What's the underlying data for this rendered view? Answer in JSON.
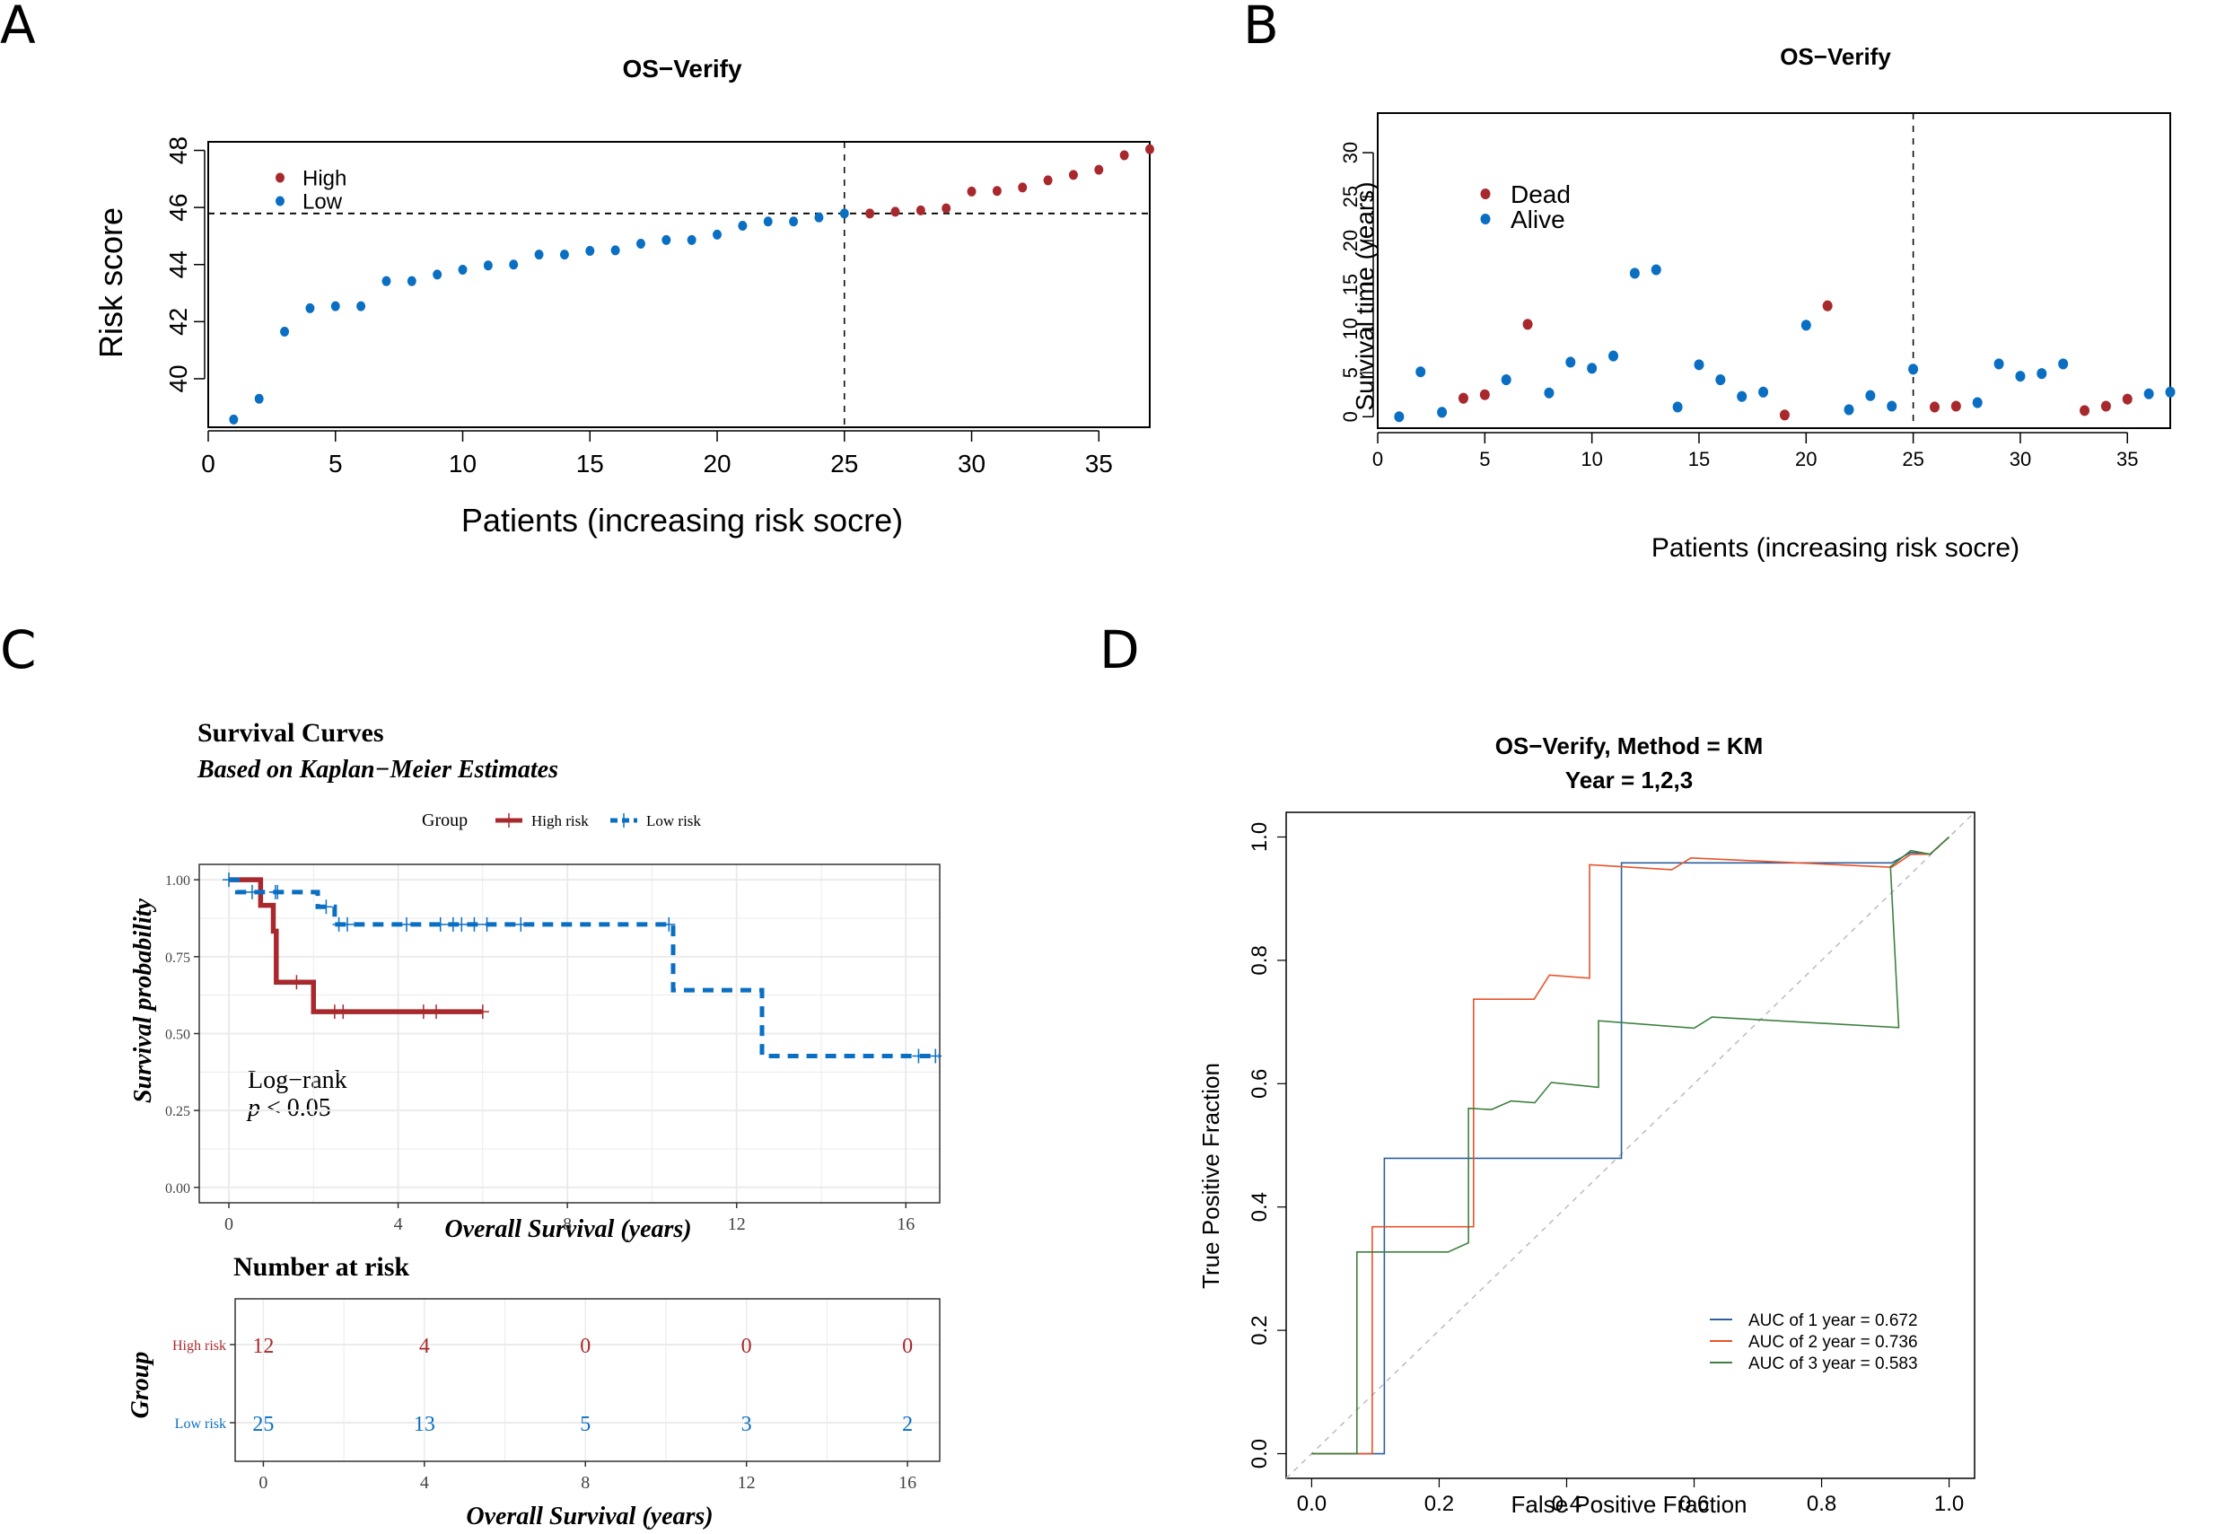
{
  "panels": {
    "A": {
      "letter": "A"
    },
    "B": {
      "letter": "B"
    },
    "C": {
      "letter": "C"
    },
    "D": {
      "letter": "D"
    }
  },
  "colors": {
    "high": "#a8292d",
    "low": "#0a6fc2",
    "roc_1": "#2c5f9e",
    "roc_2": "#e8532a",
    "roc_3": "#3d8040",
    "diag": "#bbbbbb",
    "grid": "#ebebeb"
  },
  "chart_data": [
    {
      "id": "A",
      "type": "scatter",
      "title": "OS−Verify",
      "xlabel": "Patients (increasing risk socre)",
      "ylabel": "Risk score",
      "xlim": [
        0,
        37
      ],
      "ylim": [
        38.3,
        48.3
      ],
      "xticks": [
        0,
        5,
        10,
        15,
        20,
        25,
        30,
        35
      ],
      "yticks": [
        40,
        42,
        44,
        46,
        48
      ],
      "cutoff_x": 25,
      "cutoff_y": 45.79,
      "legend": [
        {
          "label": "High",
          "color_key": "high"
        },
        {
          "label": "Low",
          "color_key": "low"
        }
      ],
      "legend_position": "top-left",
      "x": [
        1,
        2,
        3,
        4,
        5,
        6,
        7,
        8,
        9,
        10,
        11,
        12,
        13,
        14,
        15,
        16,
        17,
        18,
        19,
        20,
        21,
        22,
        23,
        24,
        25,
        26,
        27,
        28,
        29,
        30,
        31,
        32,
        33,
        34,
        35,
        36,
        37
      ],
      "values": [
        38.57,
        39.3,
        41.65,
        42.47,
        42.54,
        42.54,
        43.42,
        43.42,
        43.65,
        43.82,
        43.97,
        44.0,
        44.35,
        44.35,
        44.48,
        44.5,
        44.73,
        44.86,
        44.86,
        45.05,
        45.36,
        45.51,
        45.51,
        45.65,
        45.79,
        45.79,
        45.85,
        45.9,
        45.97,
        46.56,
        46.58,
        46.7,
        46.95,
        47.14,
        47.32,
        47.83,
        48.04
      ],
      "groups": [
        "Low",
        "Low",
        "Low",
        "Low",
        "Low",
        "Low",
        "Low",
        "Low",
        "Low",
        "Low",
        "Low",
        "Low",
        "Low",
        "Low",
        "Low",
        "Low",
        "Low",
        "Low",
        "Low",
        "Low",
        "Low",
        "Low",
        "Low",
        "Low",
        "Low",
        "High",
        "High",
        "High",
        "High",
        "High",
        "High",
        "High",
        "High",
        "High",
        "High",
        "High",
        "High"
      ]
    },
    {
      "id": "B",
      "type": "scatter",
      "title": "OS−Verify",
      "xlabel": "Patients (increasing risk socre)",
      "ylabel": "Survival time (years)",
      "xlim": [
        0,
        37
      ],
      "ylim": [
        -1.3,
        34.5
      ],
      "xticks": [
        0,
        5,
        10,
        15,
        20,
        25,
        30,
        35
      ],
      "yticks": [
        0,
        5,
        10,
        15,
        20,
        25,
        30
      ],
      "cutoff_x": 25,
      "legend": [
        {
          "label": "Dead",
          "color_key": "high"
        },
        {
          "label": "Alive",
          "color_key": "low"
        }
      ],
      "legend_position": "top-left",
      "x": [
        1,
        2,
        3,
        4,
        5,
        6,
        7,
        8,
        9,
        10,
        11,
        12,
        13,
        14,
        15,
        16,
        17,
        18,
        19,
        20,
        21,
        22,
        23,
        24,
        25,
        26,
        27,
        28,
        29,
        30,
        31,
        32,
        33,
        34,
        35,
        36,
        37
      ],
      "values": [
        0.0,
        5.1,
        0.5,
        2.1,
        2.5,
        4.2,
        10.5,
        2.7,
        6.2,
        5.5,
        6.9,
        16.3,
        16.7,
        1.1,
        5.9,
        4.2,
        2.3,
        2.8,
        0.2,
        10.4,
        12.6,
        0.8,
        2.4,
        1.2,
        5.4,
        1.1,
        1.2,
        1.6,
        6.0,
        4.6,
        4.9,
        6.0,
        0.7,
        1.2,
        2.0,
        2.6,
        2.8
      ],
      "status": [
        "Alive",
        "Alive",
        "Alive",
        "Dead",
        "Dead",
        "Alive",
        "Dead",
        "Alive",
        "Alive",
        "Alive",
        "Alive",
        "Alive",
        "Alive",
        "Alive",
        "Alive",
        "Alive",
        "Alive",
        "Alive",
        "Dead",
        "Alive",
        "Dead",
        "Alive",
        "Alive",
        "Alive",
        "Alive",
        "Dead",
        "Dead",
        "Alive",
        "Alive",
        "Alive",
        "Alive",
        "Alive",
        "Dead",
        "Dead",
        "Dead",
        "Alive",
        "Alive"
      ]
    },
    {
      "id": "C",
      "type": "line",
      "title": "Survival Curves",
      "subtitle": "Based on Kaplan−Meier Estimates",
      "xlabel": "Overall Survival (years)",
      "ylabel": "Survival probability",
      "xlim": [
        -0.7,
        16.8
      ],
      "ylim": [
        -0.05,
        1.05
      ],
      "xticks": [
        0,
        4,
        8,
        12,
        16
      ],
      "yticks": [
        0.0,
        0.25,
        0.5,
        0.75,
        1.0
      ],
      "ytick_labels": [
        "0.00",
        "0.25",
        "0.50",
        "0.75",
        "1.00"
      ],
      "legend_title": "Group",
      "legend_position": "top",
      "annotation": [
        "Log−rank",
        "p < 0.05"
      ],
      "series": [
        {
          "name": "High risk",
          "color_key": "high",
          "style": "solid",
          "steps": [
            [
              0,
              1.0
            ],
            [
              0.75,
              1.0
            ],
            [
              0.75,
              0.917
            ],
            [
              1.05,
              0.917
            ],
            [
              1.05,
              0.833
            ],
            [
              1.12,
              0.833
            ],
            [
              1.12,
              0.667
            ],
            [
              2.0,
              0.667
            ],
            [
              2.0,
              0.571
            ],
            [
              6.0,
              0.571
            ]
          ],
          "censor_x": [
            1.6,
            2.5,
            2.7,
            4.6,
            4.9,
            6.0
          ],
          "censor_y": [
            0.667,
            0.571,
            0.571,
            0.571,
            0.571,
            0.571
          ]
        },
        {
          "name": "Low risk",
          "color_key": "low",
          "style": "dashed",
          "steps": [
            [
              0,
              1.0
            ],
            [
              0.2,
              1.0
            ],
            [
              0.2,
              0.96
            ],
            [
              2.1,
              0.96
            ],
            [
              2.1,
              0.912
            ],
            [
              2.5,
              0.912
            ],
            [
              2.5,
              0.855
            ],
            [
              10.5,
              0.855
            ],
            [
              10.5,
              0.641
            ],
            [
              12.6,
              0.641
            ],
            [
              12.6,
              0.427
            ],
            [
              16.8,
              0.427
            ]
          ],
          "censor_x": [
            0.0,
            0.55,
            1.1,
            1.15,
            2.3,
            2.6,
            2.8,
            4.2,
            5.0,
            5.3,
            5.5,
            5.8,
            6.1,
            6.9,
            10.4,
            16.3,
            16.7
          ],
          "censor_y": [
            1.0,
            0.96,
            0.96,
            0.96,
            0.912,
            0.855,
            0.855,
            0.855,
            0.855,
            0.855,
            0.855,
            0.855,
            0.855,
            0.855,
            0.855,
            0.427,
            0.427
          ]
        }
      ]
    },
    {
      "id": "C-risk",
      "type": "table",
      "title": "Number at risk",
      "xlabel": "Overall Survival (years)",
      "ylabel": "Group",
      "xticks": [
        0,
        4,
        8,
        12,
        16
      ],
      "rows": [
        {
          "label": "High risk",
          "color_key": "high",
          "values": [
            "12",
            "4",
            "0",
            "0",
            "0"
          ]
        },
        {
          "label": "Low risk",
          "color_key": "low",
          "values": [
            "25",
            "13",
            "5",
            "3",
            "2"
          ]
        }
      ]
    },
    {
      "id": "D",
      "type": "line",
      "title": "OS−Verify, Method = KM",
      "subtitle": "Year = 1,2,3",
      "xlabel": "False Positive Fraction",
      "ylabel": "True Positive Fraction",
      "xlim": [
        -0.04,
        1.04
      ],
      "ylim": [
        -0.04,
        1.04
      ],
      "xticks": [
        0.0,
        0.2,
        0.4,
        0.6,
        0.8,
        1.0
      ],
      "xtick_labels": [
        "0.0",
        "0.2",
        "0.4",
        "0.6",
        "0.8",
        "1.0"
      ],
      "yticks": [
        0.0,
        0.2,
        0.4,
        0.6,
        0.8,
        1.0
      ],
      "ytick_labels": [
        "0.0",
        "0.2",
        "0.4",
        "0.6",
        "0.8",
        "1.0"
      ],
      "legend_position": "bottom-right",
      "series": [
        {
          "name": "AUC of 1 year = 0.672",
          "color_key": "roc_1",
          "x": [
            0,
            0.114,
            0.114,
            0.486,
            0.486,
            0.91,
            0.94,
            0.97,
            1.0
          ],
          "y": [
            0,
            0,
            0.479,
            0.479,
            0.958,
            0.958,
            0.975,
            0.972,
            1.0
          ]
        },
        {
          "name": "AUC of 2 year = 0.736",
          "color_key": "roc_2",
          "x": [
            0,
            0.095,
            0.095,
            0.254,
            0.254,
            0.349,
            0.373,
            0.436,
            0.436,
            0.565,
            0.595,
            0.91,
            0.94,
            0.97,
            1.0
          ],
          "y": [
            0,
            0,
            0.368,
            0.368,
            0.737,
            0.737,
            0.776,
            0.771,
            0.955,
            0.947,
            0.966,
            0.951,
            0.972,
            0.972,
            1.0
          ]
        },
        {
          "name": "AUC of 3 year = 0.583",
          "color_key": "roc_3",
          "x": [
            0,
            0.071,
            0.071,
            0.214,
            0.246,
            0.246,
            0.282,
            0.313,
            0.35,
            0.376,
            0.45,
            0.45,
            0.6,
            0.628,
            0.921,
            0.908,
            0.94,
            0.97,
            1.0
          ],
          "y": [
            0,
            0,
            0.327,
            0.327,
            0.342,
            0.56,
            0.558,
            0.572,
            0.569,
            0.602,
            0.594,
            0.702,
            0.69,
            0.708,
            0.691,
            0.952,
            0.978,
            0.972,
            1.0
          ]
        }
      ]
    }
  ]
}
